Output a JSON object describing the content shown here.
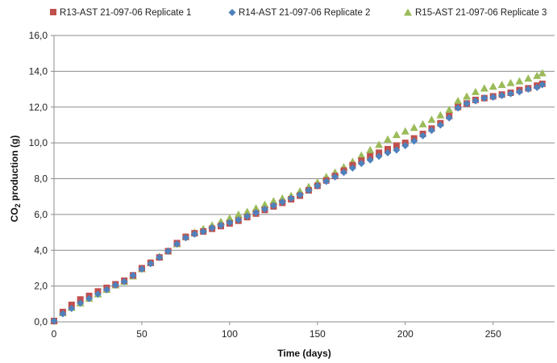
{
  "chart_data": {
    "type": "scatter",
    "title": "",
    "xlabel": "Time (days)",
    "ylabel_main": "CO",
    "ylabel_sub": "2",
    "ylabel_rest": " production (g)",
    "xlim": [
      0,
      285
    ],
    "ylim": [
      0,
      16
    ],
    "x_ticks": [
      0,
      50,
      100,
      150,
      200,
      250
    ],
    "x_tick_labels": [
      "0",
      "50",
      "100",
      "150",
      "200",
      "250"
    ],
    "y_ticks": [
      0,
      2,
      4,
      6,
      8,
      10,
      12,
      14,
      16
    ],
    "y_tick_labels": [
      "0,0",
      "2,0",
      "4,0",
      "6,0",
      "8,0",
      "10,0",
      "12,0",
      "14,0",
      "16,0"
    ],
    "grid": "horizontal",
    "legend_position": "top",
    "series": [
      {
        "name": "R13-AST 21-097-06  Replicate 1",
        "marker": "square",
        "color": "#c0504d",
        "x": [
          0,
          5,
          10,
          15,
          20,
          25,
          30,
          35,
          40,
          45,
          50,
          55,
          60,
          65,
          70,
          75,
          80,
          85,
          90,
          95,
          100,
          105,
          110,
          115,
          120,
          125,
          130,
          135,
          140,
          145,
          150,
          155,
          160,
          165,
          170,
          175,
          180,
          185,
          190,
          195,
          200,
          205,
          210,
          215,
          220,
          225,
          230,
          235,
          240,
          245,
          250,
          255,
          260,
          265,
          270,
          275,
          278
        ],
        "y": [
          0.05,
          0.55,
          0.95,
          1.25,
          1.45,
          1.7,
          1.9,
          2.1,
          2.3,
          2.6,
          3.0,
          3.3,
          3.6,
          3.95,
          4.4,
          4.75,
          4.95,
          5.05,
          5.2,
          5.35,
          5.5,
          5.65,
          5.85,
          6.05,
          6.25,
          6.45,
          6.65,
          6.85,
          7.05,
          7.35,
          7.6,
          7.9,
          8.15,
          8.45,
          8.75,
          9.0,
          9.25,
          9.45,
          9.65,
          9.85,
          10.0,
          10.25,
          10.5,
          10.8,
          11.1,
          11.5,
          12.0,
          12.2,
          12.4,
          12.5,
          12.6,
          12.7,
          12.8,
          12.95,
          13.05,
          13.2,
          13.3
        ]
      },
      {
        "name": "R14-AST 21-097-06  Replicate 2",
        "marker": "diamond",
        "color": "#4f81bd",
        "x": [
          0,
          5,
          10,
          15,
          20,
          25,
          30,
          35,
          40,
          45,
          50,
          55,
          60,
          65,
          70,
          75,
          80,
          85,
          90,
          95,
          100,
          105,
          110,
          115,
          120,
          125,
          130,
          135,
          140,
          145,
          150,
          155,
          160,
          165,
          170,
          175,
          180,
          185,
          190,
          195,
          200,
          205,
          210,
          215,
          220,
          225,
          230,
          235,
          240,
          245,
          250,
          255,
          260,
          265,
          270,
          275,
          278
        ],
        "y": [
          0.05,
          0.45,
          0.75,
          1.05,
          1.3,
          1.55,
          1.8,
          2.05,
          2.25,
          2.6,
          2.95,
          3.25,
          3.6,
          3.95,
          4.35,
          4.7,
          4.9,
          5.05,
          5.25,
          5.4,
          5.55,
          5.7,
          5.9,
          6.1,
          6.3,
          6.5,
          6.7,
          6.9,
          7.1,
          7.35,
          7.6,
          7.85,
          8.1,
          8.35,
          8.6,
          8.85,
          9.05,
          9.25,
          9.45,
          9.6,
          9.85,
          10.1,
          10.4,
          10.7,
          11.0,
          11.4,
          11.95,
          12.2,
          12.35,
          12.5,
          12.55,
          12.65,
          12.75,
          12.85,
          13.0,
          13.1,
          13.25
        ]
      },
      {
        "name": "R15-AST 21-097-06  Replicate 3",
        "marker": "triangle",
        "color": "#9bbb59",
        "x": [
          0,
          5,
          10,
          15,
          20,
          25,
          30,
          35,
          40,
          45,
          50,
          55,
          60,
          65,
          70,
          75,
          80,
          85,
          90,
          95,
          100,
          105,
          110,
          115,
          120,
          125,
          130,
          135,
          140,
          145,
          150,
          155,
          160,
          165,
          170,
          175,
          180,
          185,
          190,
          195,
          200,
          205,
          210,
          215,
          220,
          225,
          230,
          235,
          240,
          245,
          250,
          255,
          260,
          265,
          270,
          275,
          278
        ],
        "y": [
          0.05,
          0.5,
          0.8,
          1.05,
          1.3,
          1.55,
          1.8,
          2.05,
          2.25,
          2.55,
          2.95,
          3.3,
          3.65,
          3.95,
          4.35,
          4.75,
          5.0,
          5.2,
          5.4,
          5.6,
          5.8,
          6.0,
          6.15,
          6.35,
          6.55,
          6.75,
          6.9,
          7.05,
          7.3,
          7.55,
          7.8,
          8.1,
          8.35,
          8.65,
          8.95,
          9.3,
          9.6,
          9.9,
          10.2,
          10.45,
          10.65,
          10.85,
          11.05,
          11.3,
          11.55,
          11.85,
          12.35,
          12.6,
          12.85,
          13.05,
          13.15,
          13.25,
          13.35,
          13.45,
          13.6,
          13.75,
          13.9
        ]
      }
    ]
  }
}
